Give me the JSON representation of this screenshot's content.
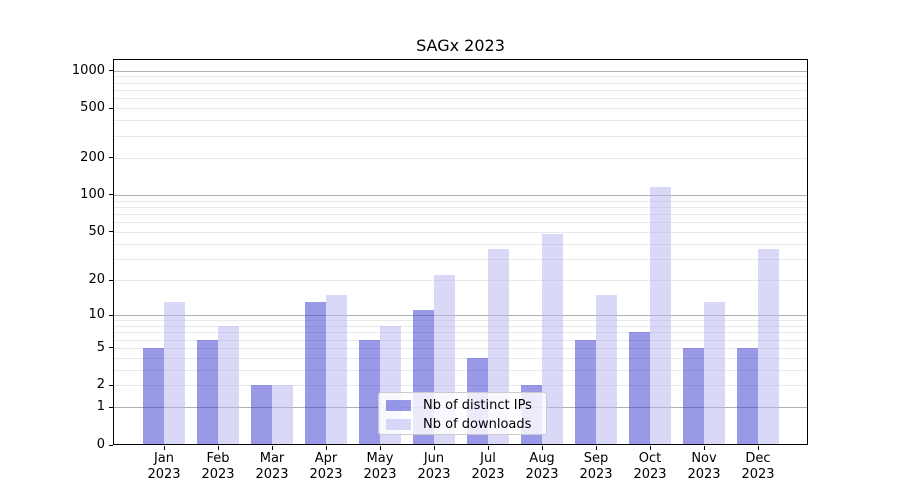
{
  "chart_data": {
    "type": "bar",
    "title": "SAGx 2023",
    "categories": [
      "Jan",
      "Feb",
      "Mar",
      "Apr",
      "May",
      "Jun",
      "Jul",
      "Aug",
      "Sep",
      "Oct",
      "Nov",
      "Dec"
    ],
    "category_year": "2023",
    "series": [
      {
        "name": "Nb of distinct IPs",
        "color": "rgba(51,51,209,0.5)",
        "values": [
          5,
          6,
          2,
          13,
          6,
          11,
          4,
          2,
          6,
          7,
          5,
          5
        ]
      },
      {
        "name": "Nb of downloads",
        "color": "rgba(179,179,240,0.5)",
        "values": [
          13,
          8,
          2,
          15,
          8,
          22,
          36,
          48,
          15,
          116,
          13,
          36
        ]
      }
    ],
    "y_axis": {
      "scale": "log(value+1)",
      "range": [
        0,
        1250
      ],
      "tick_values": [
        0,
        1,
        2,
        5,
        10,
        20,
        50,
        100,
        200,
        500,
        1000
      ],
      "tick_labels": [
        "0",
        "1",
        "2",
        "5",
        "10",
        "20",
        "50",
        "100",
        "200",
        "500",
        "1000"
      ],
      "strong_gridline_values": [
        1,
        10,
        100,
        1000
      ],
      "minor_gridline_values": [
        3,
        4,
        6,
        7,
        8,
        9,
        30,
        40,
        60,
        70,
        80,
        90,
        300,
        400,
        600,
        700,
        800,
        900
      ]
    },
    "x_axis": {
      "grid": false
    },
    "legend": {
      "position": "lower-center"
    },
    "colors": {
      "grid_minor": "#e9e9e9",
      "grid_strong": "#b0b0b0",
      "axis": "#000000",
      "background": "#ffffff"
    }
  }
}
